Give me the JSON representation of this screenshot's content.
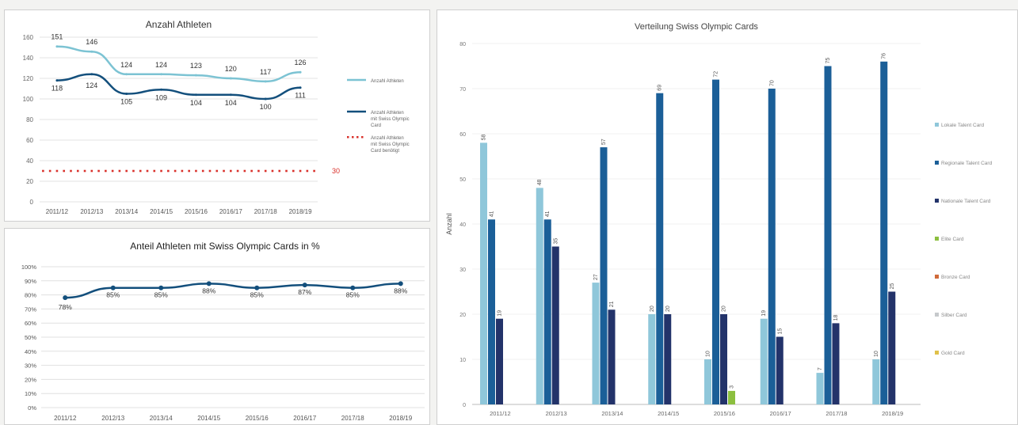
{
  "charts": [
    {
      "type": "line",
      "title": "Anzahl Athleten",
      "categories": [
        "2011/12",
        "2012/13",
        "2013/14",
        "2014/15",
        "2015/16",
        "2016/17",
        "2017/18",
        "2018/19"
      ],
      "ylim": [
        0,
        160
      ],
      "yticks": [
        0,
        20,
        40,
        60,
        80,
        100,
        120,
        140,
        160
      ],
      "grid": true,
      "legend_position": "right",
      "series": [
        {
          "name": "Anzahl Athleten",
          "color": "#7cc3d3",
          "style": "solid",
          "values": [
            151,
            146,
            124,
            124,
            123,
            120,
            117,
            126
          ]
        },
        {
          "name": "Anzahl Athleten mit Swiss Olympic Card",
          "color": "#134f7c",
          "style": "solid",
          "values": [
            118,
            124,
            105,
            109,
            104,
            104,
            100,
            111
          ]
        },
        {
          "name": "Anzahl Athleten mit Swiss Olympic Card benötigt",
          "color": "#d9302a",
          "style": "dotted",
          "values": [
            30,
            30,
            30,
            30,
            30,
            30,
            30,
            30
          ]
        }
      ],
      "data_labels": [
        [
          "151",
          "146",
          "124",
          "124",
          "123",
          "120",
          "117",
          "126"
        ],
        [
          "118",
          "124",
          "105",
          "109",
          "104",
          "104",
          "100",
          "111"
        ],
        [
          "",
          "",
          "",
          "",
          "",
          "",
          "",
          "30"
        ]
      ]
    },
    {
      "type": "line",
      "title": "Anteil Athleten mit Swiss Olympic Cards in %",
      "categories": [
        "2011/12",
        "2012/13",
        "2013/14",
        "2014/15",
        "2015/16",
        "2016/17",
        "2017/18",
        "2018/19"
      ],
      "ylim": [
        0,
        100
      ],
      "yticks": [
        "0%",
        "10%",
        "20%",
        "30%",
        "40%",
        "50%",
        "60%",
        "70%",
        "80%",
        "90%",
        "100%"
      ],
      "grid": true,
      "series": [
        {
          "name": "",
          "color": "#134f7c",
          "style": "solid",
          "values": [
            78,
            85,
            85,
            88,
            85,
            87,
            85,
            88
          ]
        }
      ],
      "data_labels": [
        [
          "78%",
          "85%",
          "85%",
          "88%",
          "85%",
          "87%",
          "85%",
          "88%"
        ]
      ]
    },
    {
      "type": "bar",
      "title": "Verteilung Swiss Olympic Cards",
      "ylabel": "Anzahl",
      "categories": [
        "2011/12",
        "2012/13",
        "2013/14",
        "2014/15",
        "2015/16",
        "2016/17",
        "2017/18",
        "2018/19"
      ],
      "ylim": [
        0,
        80
      ],
      "yticks": [
        0,
        10,
        20,
        30,
        40,
        50,
        60,
        70,
        80
      ],
      "legend_position": "right",
      "series": [
        {
          "name": "Lokale Talent Card",
          "color": "#8fc7da",
          "values": [
            58,
            48,
            27,
            20,
            10,
            19,
            7,
            10
          ]
        },
        {
          "name": "Regionale Talent Card",
          "color": "#1b5f98",
          "values": [
            41,
            41,
            57,
            69,
            72,
            70,
            75,
            76
          ]
        },
        {
          "name": "Nationale Talent Card",
          "color": "#23336a",
          "values": [
            19,
            35,
            21,
            20,
            20,
            15,
            18,
            25
          ]
        },
        {
          "name": "Elite Card",
          "color": "#8cbf3f",
          "values": [
            0,
            0,
            0,
            0,
            3,
            0,
            0,
            0
          ]
        },
        {
          "name": "Bronze Card",
          "color": "#d06a3a",
          "values": [
            0,
            0,
            0,
            0,
            0,
            0,
            0,
            0
          ]
        },
        {
          "name": "Silber Card",
          "color": "#c6c9cc",
          "values": [
            0,
            0,
            0,
            0,
            0,
            0,
            0,
            0
          ]
        },
        {
          "name": "Gold Card",
          "color": "#e0c14a",
          "values": [
            0,
            0,
            0,
            0,
            0,
            0,
            0,
            0
          ]
        }
      ]
    }
  ]
}
